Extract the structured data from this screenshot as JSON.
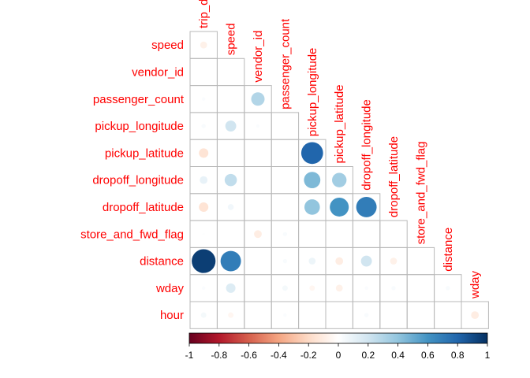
{
  "chart_data": {
    "type": "heatmap",
    "style": "corrplot-circle-lower",
    "title": "",
    "variables": [
      "trip_duration",
      "speed",
      "vendor_id",
      "passenger_count",
      "pickup_longitude",
      "pickup_latitude",
      "dropoff_longitude",
      "dropoff_latitude",
      "store_and_fwd_flag",
      "distance",
      "wday",
      "hour"
    ],
    "column_labels": [
      "trip_d",
      "speed",
      "vendor_id",
      "passenger_count",
      "pickup_longitude",
      "pickup_latitude",
      "dropoff_longitude",
      "dropoff_latitude",
      "store_and_fwd_flag",
      "distance",
      "wday"
    ],
    "row_labels": [
      "speed",
      "vendor_id",
      "passenger_count",
      "pickup_longitude",
      "pickup_latitude",
      "dropoff_longitude",
      "dropoff_latitude",
      "store_and_fwd_flag",
      "distance",
      "wday",
      "hour"
    ],
    "matrix": [
      [
        -0.08
      ],
      [
        0.0,
        0.0
      ],
      [
        0.02,
        0.0,
        0.3
      ],
      [
        0.03,
        0.2,
        0.02,
        0.0
      ],
      [
        -0.15,
        0.0,
        0.0,
        0.0,
        0.8
      ],
      [
        0.1,
        0.25,
        0.0,
        0.0,
        0.45,
        0.35
      ],
      [
        -0.15,
        0.06,
        0.0,
        0.0,
        0.4,
        0.6,
        0.7
      ],
      [
        0.01,
        0.0,
        -0.1,
        0.03,
        0.0,
        0.0,
        0.0,
        0.0
      ],
      [
        0.95,
        0.7,
        0.0,
        0.03,
        0.08,
        -0.1,
        0.2,
        -0.08,
        0.0
      ],
      [
        0.02,
        0.15,
        0.0,
        0.05,
        -0.05,
        -0.08,
        0.02,
        0.03,
        0.0,
        0.03
      ],
      [
        0.05,
        -0.05,
        0.0,
        0.02,
        0.0,
        0.0,
        0.03,
        0.0,
        0.0,
        0.0,
        -0.1
      ]
    ],
    "colorbar": {
      "ticks": [
        "-1",
        "-0.8",
        "-0.6",
        "-0.4",
        "-0.2",
        "0",
        "0.2",
        "0.4",
        "0.6",
        "0.8",
        "1"
      ],
      "range": [
        -1,
        1
      ],
      "colors": [
        "#67001f",
        "#b2182b",
        "#d6604d",
        "#f4a582",
        "#fddbc7",
        "#ffffff",
        "#d1e5f0",
        "#92c5de",
        "#4393c3",
        "#2166ac",
        "#053061"
      ]
    },
    "label_color": "#ff0000",
    "grid_color": "#b8b8b8"
  }
}
